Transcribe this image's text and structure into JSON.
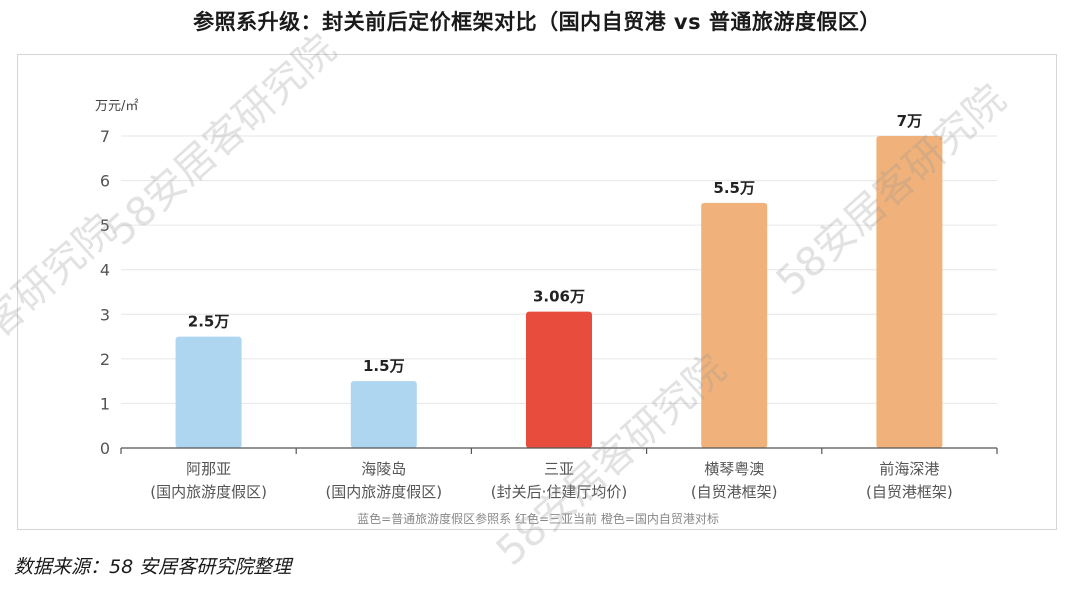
{
  "title": "参照系升级：封关前后定价框架对比（国内自贸港 vs 普通旅游度假区）",
  "source": "数据来源：58 安居客研究院整理",
  "watermark": "58安居客研究院",
  "colors": {
    "ordinary_resort": "#aed6f1",
    "sanya_current": "#e74c3c",
    "ftz_benchmark": "#f0b27a",
    "gridline": "#e6e6e6",
    "axis": "#555555"
  },
  "chart_data": {
    "type": "bar",
    "title": "参照系升级：封关前后定价框架对比（国内自贸港 vs 普通旅游度假区）",
    "ylabel": "万元/㎡",
    "ylim": [
      0,
      7
    ],
    "yticks": [
      0,
      1,
      2,
      3,
      4,
      5,
      6,
      7
    ],
    "grid": true,
    "categories": [
      {
        "name": "阿那亚",
        "sub": "(国内旅游度假区)"
      },
      {
        "name": "海陵岛",
        "sub": "(国内旅游度假区)"
      },
      {
        "name": "三亚",
        "sub": "(封关后·住建厅均价)"
      },
      {
        "name": "横琴粤澳",
        "sub": "(自贸港框架)"
      },
      {
        "name": "前海深港",
        "sub": "(自贸港框架)"
      }
    ],
    "values": [
      2.5,
      1.5,
      3.06,
      5.5,
      7
    ],
    "value_labels": [
      "2.5万",
      "1.5万",
      "3.06万",
      "5.5万",
      "7万"
    ],
    "bar_colors": [
      "#aed6f1",
      "#aed6f1",
      "#e74c3c",
      "#f0b27a",
      "#f0b27a"
    ],
    "legend_note": "蓝色=普通旅游度假区参照系   红色=三亚当前   橙色=国内自贸港对标"
  }
}
